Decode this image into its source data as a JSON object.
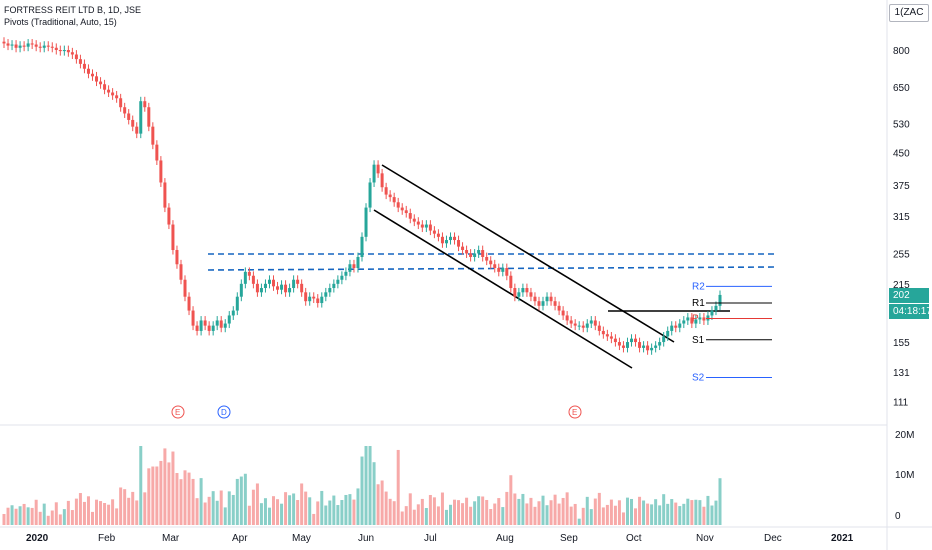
{
  "header": {
    "symbol_line": "FORTRESS REIT LTD B, 1D, JSE",
    "indicator_line": "Pivots (Traditional, Auto, 15)"
  },
  "currency": "ZAC",
  "currency_prefix": "1(",
  "last_price": "202",
  "countdown": "04:18:17",
  "colors": {
    "up": "#26a69a",
    "down": "#ef5350",
    "vol_up": "#89cfc8",
    "vol_down": "#f7a9a8",
    "pivot_blue": "#2962ff",
    "dashed": "#1565c0",
    "pivot_red": "#e53935"
  },
  "chart_data": [
    {
      "type": "candlestick",
      "yscale": "log",
      "ylim": [
        100,
        1000
      ],
      "price_ticks": [
        800,
        650,
        530,
        450,
        375,
        315,
        255,
        215,
        185,
        155,
        131,
        111
      ],
      "time_ticks": [
        "2020",
        "Feb",
        "Mar",
        "Apr",
        "May",
        "Jun",
        "Jul",
        "Aug",
        "Sep",
        "Oct",
        "Nov",
        "Dec",
        "2021"
      ],
      "series": [
        {
          "segment": "Jan",
          "close": [
            830,
            820,
            825,
            810,
            820,
            815,
            830,
            825,
            815,
            810,
            820,
            815,
            810,
            800,
            795
          ]
        },
        {
          "segment": "Feb",
          "close": [
            800,
            790,
            780,
            760,
            740,
            720,
            700,
            690,
            670,
            660,
            640,
            630,
            620,
            610,
            580,
            560,
            540,
            520,
            500
          ]
        },
        {
          "segment": "Mar",
          "close": [
            600,
            580,
            520,
            470,
            430,
            380,
            330,
            300,
            260,
            240,
            220,
            200,
            185,
            170,
            165,
            175,
            170
          ]
        },
        {
          "segment": "Apr",
          "close": [
            165,
            170,
            175,
            168,
            172,
            180,
            185,
            200,
            215,
            230,
            225,
            215,
            205,
            210,
            215,
            220,
            212,
            208,
            214
          ]
        },
        {
          "segment": "May",
          "close": [
            205,
            210,
            220,
            215,
            205,
            195,
            200,
            198,
            193,
            200,
            205,
            210,
            215,
            220,
            225,
            230,
            240,
            235
          ]
        },
        {
          "segment": "Jun",
          "close": [
            250,
            280,
            330,
            380,
            420,
            400,
            370,
            355,
            350,
            340,
            330,
            325,
            320,
            310,
            305,
            300,
            295,
            300
          ]
        },
        {
          "segment": "Jul",
          "close": [
            290,
            285,
            280,
            270,
            275,
            280,
            275,
            265,
            260,
            255,
            250,
            255,
            260,
            250,
            245,
            240,
            235,
            230
          ]
        },
        {
          "segment": "Aug",
          "close": [
            235,
            225,
            210,
            200,
            205,
            210,
            205,
            200,
            195,
            190,
            195,
            200,
            195,
            190,
            185,
            180,
            175,
            172,
            170
          ]
        },
        {
          "segment": "Sep",
          "close": [
            170,
            168,
            172,
            175,
            170,
            165,
            162,
            160,
            158,
            155,
            152,
            150,
            155,
            158,
            155,
            150,
            152,
            148
          ]
        },
        {
          "segment": "Oct",
          "close": [
            150,
            152,
            155,
            160,
            165,
            170,
            168,
            172,
            175,
            178,
            172,
            176,
            178,
            175,
            180,
            185,
            190,
            202
          ]
        }
      ],
      "volume_ticks": [
        "20M",
        "10M",
        "0"
      ],
      "levels": [
        {
          "label": "R2",
          "value": 212
        },
        {
          "label": "R1",
          "value": 193
        },
        {
          "label": "P",
          "value": 177
        },
        {
          "label": "S1",
          "value": 157
        },
        {
          "label": "S2",
          "value": 127
        }
      ],
      "event_markers": [
        "E",
        "D",
        "E"
      ]
    }
  ]
}
